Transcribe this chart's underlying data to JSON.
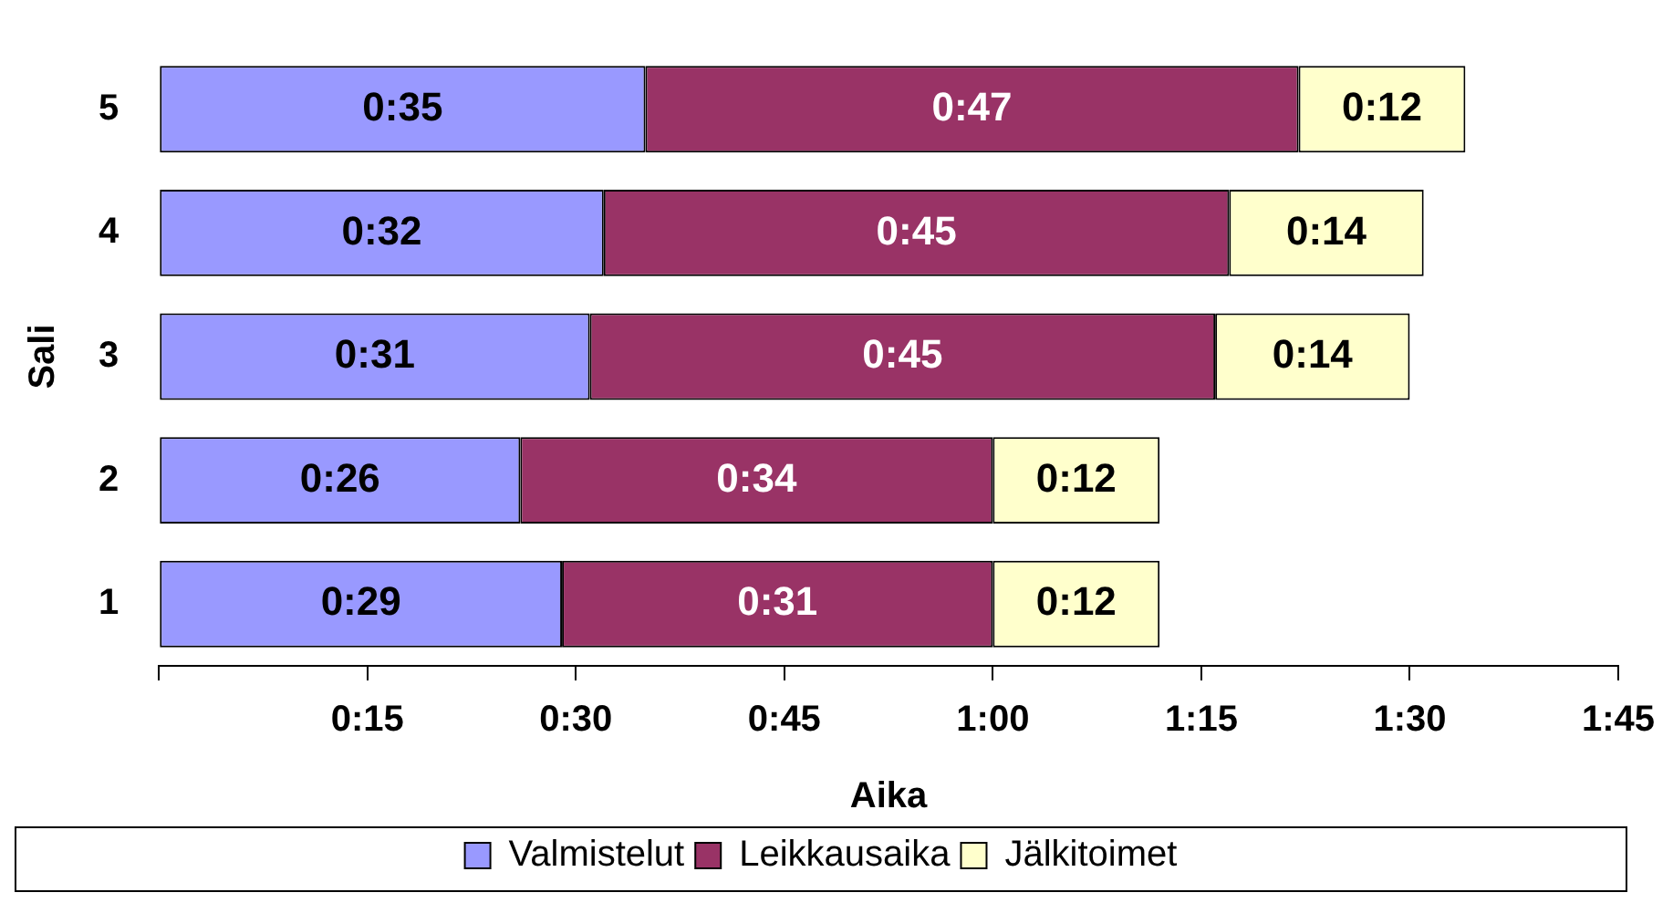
{
  "chart_data": {
    "type": "bar",
    "orientation": "horizontal",
    "stacked": true,
    "xlabel": "Aika",
    "ylabel": "Sali",
    "categories": [
      "5",
      "4",
      "3",
      "2",
      "1"
    ],
    "series": [
      {
        "name": "Valmistelut",
        "color": "#9999ff",
        "values": [
          35,
          32,
          31,
          26,
          29
        ],
        "value_labels": [
          "0:35",
          "0:32",
          "0:31",
          "0:26",
          "0:29"
        ]
      },
      {
        "name": "Leikkausaika",
        "color": "#993366",
        "values": [
          47,
          45,
          45,
          34,
          31
        ],
        "value_labels": [
          "0:47",
          "0:45",
          "0:45",
          "0:34",
          "0:31"
        ]
      },
      {
        "name": "Jälkitoimet",
        "color": "#ffffcc",
        "values": [
          12,
          14,
          14,
          12,
          12
        ],
        "value_labels": [
          "0:12",
          "0:14",
          "0:14",
          "0:12",
          "0:12"
        ]
      }
    ],
    "xlim": [
      0,
      105
    ],
    "xticks": [
      {
        "value": 0,
        "label": null
      },
      {
        "value": 15,
        "label": "0:15"
      },
      {
        "value": 30,
        "label": "0:30"
      },
      {
        "value": 45,
        "label": "0:45"
      },
      {
        "value": 60,
        "label": "1:00"
      },
      {
        "value": 75,
        "label": "1:15"
      },
      {
        "value": 90,
        "label": "1:30"
      },
      {
        "value": 105,
        "label": "1:45"
      }
    ],
    "grid": false,
    "legend": "bottom"
  }
}
